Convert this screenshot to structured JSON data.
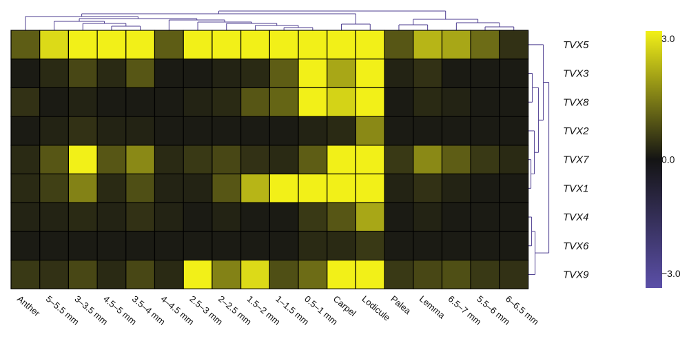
{
  "chart_data": {
    "type": "heatmap",
    "columns": [
      "Anther",
      "5–5.5 mm",
      "3–3.5 mm",
      "4.5–5 mm",
      "3.5–4 mm",
      "4–4.5 mm",
      "2.5–3 mm",
      "2–2.5 mm",
      "1.5–2 mm",
      "1–1.5 mm",
      "0.5–1 mm",
      "Carpel",
      "Lodicule",
      "Palea",
      "Lemma",
      "6.5–7 mm",
      "5.5–6 mm",
      "6–6.5 mm"
    ],
    "rows": [
      "TVX5",
      "TVX3",
      "TVX8",
      "TVX2",
      "TVX7",
      "TVX1",
      "TVX4",
      "TVX6",
      "TVX9"
    ],
    "values": [
      [
        1.0,
        2.7,
        3.0,
        3.0,
        3.0,
        1.0,
        3.0,
        3.0,
        3.0,
        3.0,
        3.0,
        3.0,
        3.0,
        0.9,
        2.2,
        2.0,
        1.2,
        0.4
      ],
      [
        0.1,
        0.3,
        0.7,
        0.3,
        0.9,
        0.1,
        0.1,
        0.2,
        0.3,
        1.0,
        3.0,
        2.0,
        3.0,
        0.2,
        0.4,
        0.1,
        0.1,
        0.1
      ],
      [
        0.4,
        0.1,
        0.2,
        0.1,
        0.1,
        0.1,
        0.2,
        0.3,
        0.9,
        1.1,
        3.0,
        2.6,
        3.0,
        0.1,
        0.3,
        0.2,
        0.1,
        0.1
      ],
      [
        0.1,
        0.2,
        0.4,
        0.2,
        0.2,
        0.1,
        0.1,
        0.1,
        0.1,
        0.1,
        0.2,
        0.3,
        1.6,
        0.1,
        0.1,
        0.1,
        0.1,
        0.1
      ],
      [
        0.3,
        0.9,
        3.0,
        0.9,
        1.6,
        0.3,
        0.5,
        0.7,
        0.4,
        0.3,
        1.0,
        3.0,
        3.0,
        0.5,
        1.6,
        1.0,
        0.5,
        0.3
      ],
      [
        0.3,
        0.6,
        1.5,
        0.3,
        0.8,
        0.2,
        0.2,
        0.9,
        2.2,
        3.0,
        3.0,
        3.0,
        3.0,
        0.2,
        0.4,
        0.2,
        0.1,
        0.1
      ],
      [
        0.2,
        0.2,
        0.3,
        0.2,
        0.4,
        0.2,
        0.1,
        0.2,
        0.1,
        0.1,
        0.5,
        0.9,
        2.0,
        0.1,
        0.2,
        0.1,
        0.1,
        0.1
      ],
      [
        0.1,
        0.1,
        0.1,
        0.1,
        0.1,
        0.1,
        0.1,
        0.1,
        0.1,
        0.1,
        0.3,
        0.3,
        0.5,
        0.1,
        0.1,
        0.1,
        0.1,
        0.1
      ],
      [
        0.5,
        0.4,
        0.7,
        0.3,
        0.7,
        0.3,
        3.0,
        1.5,
        2.7,
        0.8,
        1.2,
        3.0,
        3.0,
        0.5,
        0.7,
        0.8,
        0.5,
        0.4
      ]
    ],
    "colorbar": {
      "min": -3.0,
      "max": 3.0,
      "ticks": [
        3.0,
        0.0,
        -3.0
      ],
      "tick_labels": [
        "3.0",
        "0.0",
        "−3.0"
      ],
      "colors": {
        "low": "#5b4fa8",
        "mid": "#141414",
        "high": "#f2f018"
      }
    },
    "dendrograms": [
      "columns-top",
      "rows-right"
    ],
    "line_color": "#4b3b8f",
    "grid_color": "#000000"
  }
}
